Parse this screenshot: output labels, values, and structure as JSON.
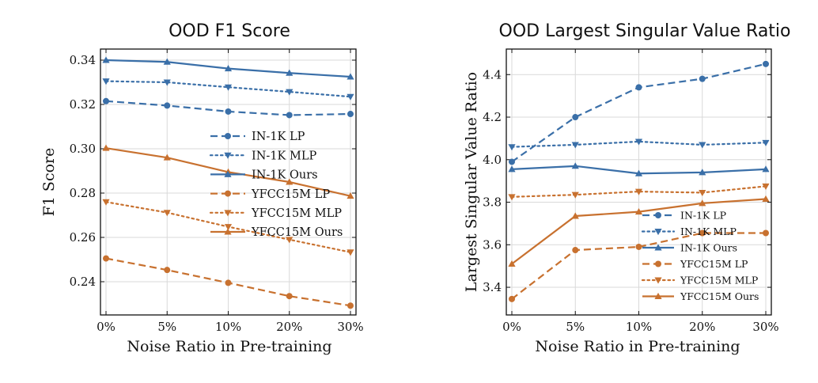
{
  "chart_data": [
    {
      "type": "line",
      "title": "OOD F1 Score",
      "xlabel": "Noise Ratio in Pre-training",
      "ylabel": "F1 Score",
      "categories": [
        "0%",
        "5%",
        "10%",
        "20%",
        "30%"
      ],
      "ylim": [
        0.225,
        0.345
      ],
      "yticks": [
        0.24,
        0.26,
        0.28,
        0.3,
        0.32,
        0.34
      ],
      "ytick_labels": [
        "0.24",
        "0.26",
        "0.28",
        "0.30",
        "0.32",
        "0.34"
      ],
      "grid": true,
      "legend_position": "center-right",
      "series": [
        {
          "name": "IN-1K LP",
          "color": "#3a6fa8",
          "dash": "dashed",
          "marker": "circle",
          "values": [
            0.3215,
            0.3195,
            0.3168,
            0.3152,
            0.3157
          ]
        },
        {
          "name": "IN-1K MLP",
          "color": "#3a6fa8",
          "dash": "dotted",
          "marker": "triangle-down",
          "values": [
            0.3305,
            0.33,
            0.3278,
            0.3257,
            0.3235
          ]
        },
        {
          "name": "IN-1K Ours",
          "color": "#3a6fa8",
          "dash": "solid",
          "marker": "triangle-up",
          "values": [
            0.34,
            0.3392,
            0.3362,
            0.3342,
            0.3325
          ]
        },
        {
          "name": "YFCC15M LP",
          "color": "#c8712f",
          "dash": "dashed",
          "marker": "circle",
          "values": [
            0.2505,
            0.2453,
            0.2395,
            0.2335,
            0.2292
          ]
        },
        {
          "name": "YFCC15M MLP",
          "color": "#c8712f",
          "dash": "dotted",
          "marker": "triangle-down",
          "values": [
            0.276,
            0.2712,
            0.2648,
            0.259,
            0.2533
          ]
        },
        {
          "name": "YFCC15M Ours",
          "color": "#c8712f",
          "dash": "solid",
          "marker": "triangle-up",
          "values": [
            0.3003,
            0.296,
            0.2895,
            0.285,
            0.2787
          ]
        }
      ]
    },
    {
      "type": "line",
      "title": "OOD Largest Singular Value Ratio",
      "xlabel": "Noise Ratio in Pre-training",
      "ylabel": "Largest Singular Value Ratio",
      "categories": [
        "0%",
        "5%",
        "10%",
        "20%",
        "30%"
      ],
      "ylim": [
        3.27,
        4.52
      ],
      "yticks": [
        3.4,
        3.6,
        3.8,
        4.0,
        4.2,
        4.4
      ],
      "ytick_labels": [
        "3.4",
        "3.6",
        "3.8",
        "4.0",
        "4.2",
        "4.4"
      ],
      "grid": true,
      "legend_position": "lower-right",
      "series": [
        {
          "name": "IN-1K LP",
          "color": "#3a6fa8",
          "dash": "dashed",
          "marker": "circle",
          "values": [
            3.99,
            4.2,
            4.34,
            4.38,
            4.45
          ]
        },
        {
          "name": "IN-1K MLP",
          "color": "#3a6fa8",
          "dash": "dotted",
          "marker": "triangle-down",
          "values": [
            4.06,
            4.07,
            4.085,
            4.07,
            4.08
          ]
        },
        {
          "name": "IN-1K Ours",
          "color": "#3a6fa8",
          "dash": "solid",
          "marker": "triangle-up",
          "values": [
            3.955,
            3.97,
            3.935,
            3.94,
            3.955
          ]
        },
        {
          "name": "YFCC15M LP",
          "color": "#c8712f",
          "dash": "dashed",
          "marker": "circle",
          "values": [
            3.345,
            3.575,
            3.59,
            3.655,
            3.655
          ]
        },
        {
          "name": "YFCC15M MLP",
          "color": "#c8712f",
          "dash": "dotted",
          "marker": "triangle-down",
          "values": [
            3.825,
            3.835,
            3.85,
            3.845,
            3.875
          ]
        },
        {
          "name": "YFCC15M Ours",
          "color": "#c8712f",
          "dash": "solid",
          "marker": "triangle-up",
          "values": [
            3.51,
            3.735,
            3.755,
            3.795,
            3.815
          ]
        }
      ]
    }
  ]
}
